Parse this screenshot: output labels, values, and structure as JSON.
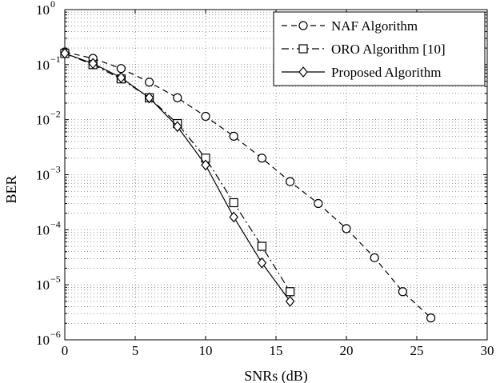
{
  "chart_data": {
    "type": "line",
    "title": "",
    "xlabel": "SNRs (dB)",
    "ylabel": "BER",
    "xlim": [
      0,
      30
    ],
    "ylim": [
      1e-06,
      1
    ],
    "yscale": "log",
    "grid": true,
    "legend_position": "top-right",
    "x_ticks": [
      0,
      5,
      10,
      15,
      20,
      25,
      30
    ],
    "x_tick_labels": [
      "0",
      "5",
      "10",
      "15",
      "20",
      "25",
      "30"
    ],
    "y_ticks": [
      {
        "value": 1,
        "base": "10",
        "exp": "0"
      },
      {
        "value": 0.1,
        "base": "10",
        "exp": "−1"
      },
      {
        "value": 0.01,
        "base": "10",
        "exp": "−2"
      },
      {
        "value": 0.001,
        "base": "10",
        "exp": "−3"
      },
      {
        "value": 0.0001,
        "base": "10",
        "exp": "−4"
      },
      {
        "value": 1e-05,
        "base": "10",
        "exp": "−5"
      },
      {
        "value": 1e-06,
        "base": "10",
        "exp": "−6"
      }
    ],
    "series": [
      {
        "name": "NAF Algorithm",
        "marker": "circle",
        "dash": "dashed",
        "x": [
          0,
          2,
          4,
          6,
          8,
          10,
          12,
          14,
          16,
          18,
          20,
          22,
          24,
          26
        ],
        "y": [
          0.17,
          0.13,
          0.085,
          0.048,
          0.025,
          0.0115,
          0.005,
          0.002,
          0.00075,
          0.0003,
          0.000105,
          3.1e-05,
          7.5e-06,
          2.5e-06
        ]
      },
      {
        "name": "ORO Algorithm [10]",
        "marker": "square",
        "dash": "dashdot",
        "x": [
          0,
          2,
          4,
          6,
          8,
          10,
          12,
          14,
          16
        ],
        "y": [
          0.16,
          0.1,
          0.055,
          0.025,
          0.0085,
          0.002,
          0.00031,
          5e-05,
          7.5e-06
        ]
      },
      {
        "name": "Proposed Algorithm",
        "marker": "diamond",
        "dash": "solid",
        "x": [
          0,
          2,
          4,
          6,
          8,
          10,
          12,
          14,
          16
        ],
        "y": [
          0.16,
          0.105,
          0.058,
          0.025,
          0.0075,
          0.0015,
          0.00017,
          2.5e-05,
          5e-06
        ]
      }
    ]
  }
}
